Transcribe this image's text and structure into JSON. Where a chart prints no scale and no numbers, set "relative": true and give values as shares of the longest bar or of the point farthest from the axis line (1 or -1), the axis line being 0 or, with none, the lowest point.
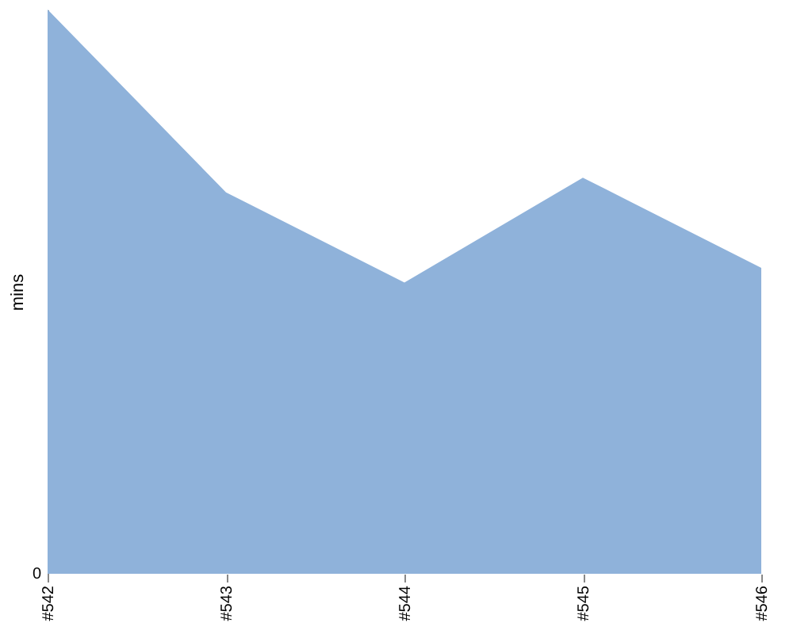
{
  "chart_data": {
    "type": "area",
    "ylabel": "mins",
    "relative": true,
    "annotations": [
      "0"
    ],
    "categories": [
      "#542",
      "#543",
      "#544",
      "#545",
      "#546"
    ],
    "series": [
      {
        "color": "#8fb2da",
        "values": [
          1,
          0.676,
          0.516,
          0.702,
          0.542
        ]
      }
    ]
  }
}
